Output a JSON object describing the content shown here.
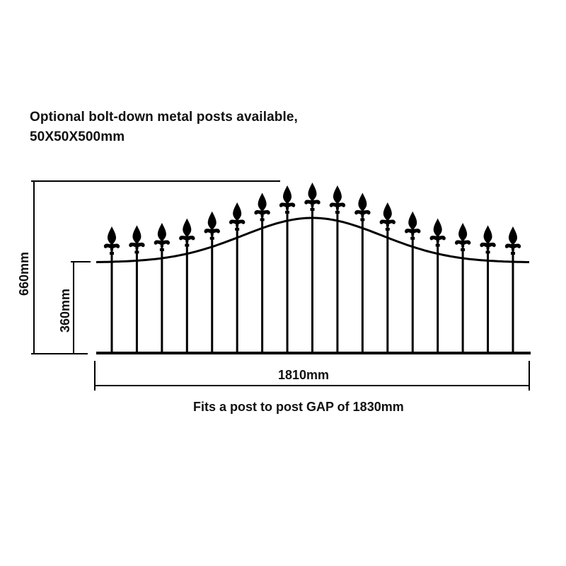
{
  "header": {
    "line1": "Optional bolt-down metal posts available,",
    "line2": "50X50X500mm"
  },
  "dimensions": {
    "total_height": "660mm",
    "rail_height": "360mm",
    "width": "1810mm",
    "gap_note": "Fits a post to post GAP of 1830mm"
  },
  "fence": {
    "bar_count": 17,
    "color": "#000000",
    "finial": "fleur-de-lis spear"
  }
}
